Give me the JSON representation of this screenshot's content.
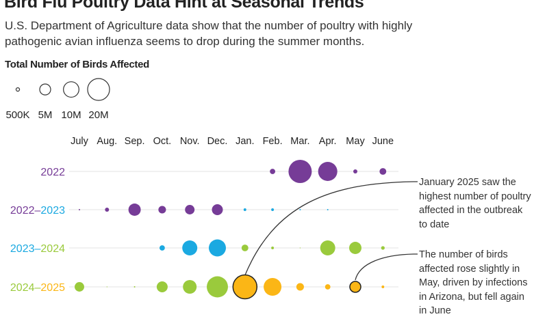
{
  "title": "Bird Flu Poultry Data Hint at Seasonal Trends",
  "subtitle": "U.S. Department of Agriculture data show that the number of poultry with highly pathogenic avian influenza seems to drop during the summer months.",
  "legend": {
    "title": "Total Number of Birds Affected",
    "items": [
      {
        "label": "500K",
        "value": 0.5
      },
      {
        "label": "5M",
        "value": 5
      },
      {
        "label": "10M",
        "value": 10
      },
      {
        "label": "20M",
        "value": 20
      }
    ]
  },
  "annotations": [
    "January 2025 saw the highest number of poultry affected in the outbreak to date",
    "The number of birds affected rose slightly in May, driven by infections in Arizona, but fell again in June"
  ],
  "chart_data": {
    "type": "bubble",
    "unit": "millions of birds",
    "categories": [
      "July",
      "Aug.",
      "Sep.",
      "Oct.",
      "Nov.",
      "Dec.",
      "Jan.",
      "Feb.",
      "Mar.",
      "Apr.",
      "May",
      "June"
    ],
    "colors": {
      "2022": "#763c97",
      "2023": "#1ba9e1",
      "2024": "#9aca3c",
      "2025": "#fbb616"
    },
    "series": [
      {
        "name": "2022",
        "label_parts": [
          "2022"
        ],
        "years": [
          null,
          null,
          null,
          null,
          null,
          null,
          "2022",
          "2022",
          "2022",
          "2022",
          "2022",
          "2022"
        ],
        "values": [
          null,
          null,
          null,
          null,
          null,
          null,
          null,
          1.2,
          22.5,
          15.3,
          0.7,
          1.9
        ]
      },
      {
        "name": "2022–2023",
        "label_parts": [
          "2022",
          "–",
          "2023"
        ],
        "years": [
          "2022",
          "2022",
          "2022",
          "2022",
          "2022",
          "2022",
          "2023",
          "2023",
          "2023",
          "2023",
          "2023",
          "2023"
        ],
        "values": [
          0.08,
          0.7,
          6.3,
          2.4,
          3.8,
          5.0,
          0.3,
          0.3,
          0.08,
          0.08,
          null,
          null
        ]
      },
      {
        "name": "2023–2024",
        "label_parts": [
          "2023",
          "–",
          "2024"
        ],
        "years": [
          "2023",
          "2023",
          "2023",
          "2023",
          "2023",
          "2023",
          "2024",
          "2024",
          "2024",
          "2024",
          "2024",
          "2024"
        ],
        "values": [
          null,
          null,
          null,
          1.2,
          9.4,
          12.2,
          1.9,
          0.3,
          0.02,
          9.4,
          6.3,
          0.55
        ]
      },
      {
        "name": "2024–2025",
        "label_parts": [
          "2024",
          "–",
          "2025"
        ],
        "years": [
          "2024",
          "2024",
          "2024",
          "2024",
          "2024",
          "2024",
          "2025",
          "2025",
          "2025",
          "2025",
          "2025",
          "2025"
        ],
        "values": [
          3.8,
          0.02,
          0.08,
          5.0,
          7.8,
          18.7,
          23.9,
          13.2,
          2.4,
          1.2,
          5.0,
          0.3
        ],
        "highlighted": [
          "Jan.",
          "May"
        ]
      }
    ]
  }
}
